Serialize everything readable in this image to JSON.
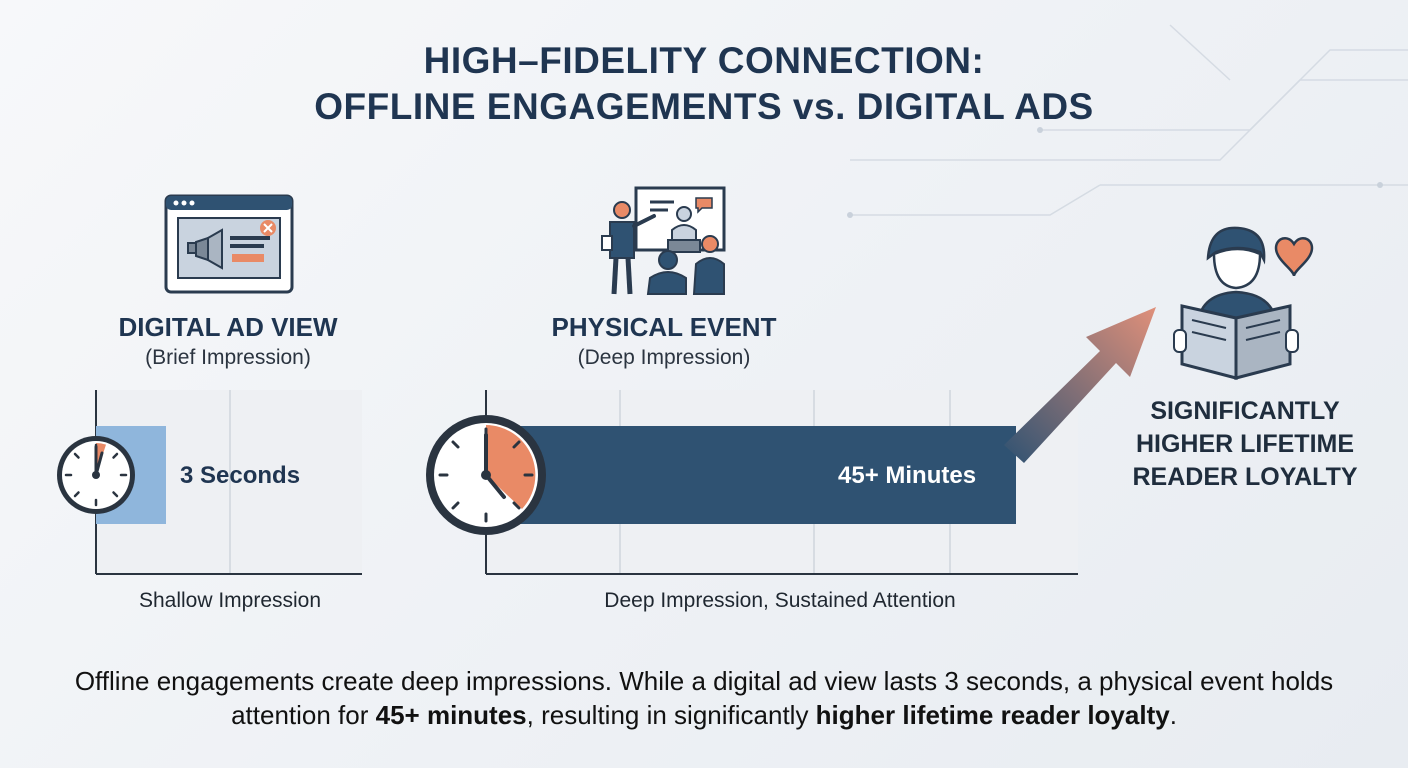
{
  "title": {
    "line1": "HIGH–FIDELITY CONNECTION:",
    "line2": "OFFLINE ENGAGEMENTS vs. DIGITAL ADS"
  },
  "digital": {
    "icon": "browser-ad-icon",
    "heading": "DIGITAL AD VIEW",
    "subheading": "(Brief Impression)",
    "bar_label": "3 Seconds",
    "caption": "Shallow Impression",
    "duration_seconds": 3,
    "bar_color": "#8fb6dc"
  },
  "physical": {
    "icon": "presentation-event-icon",
    "heading": "PHYSICAL EVENT",
    "subheading": "(Deep Impression)",
    "bar_label": "45+ Minutes",
    "caption": "Deep Impression, Sustained Attention",
    "duration_minutes": 45,
    "bar_color": "#2f5272"
  },
  "outcome": {
    "icon": "reader-with-heart-icon",
    "line1": "SIGNIFICANTLY",
    "line2": "HIGHER LIFETIME",
    "line3": "READER LOYALTY"
  },
  "summary": {
    "part1": "Offline engagements create deep impressions. While a digital ad view lasts 3 seconds, a physical event holds attention for ",
    "bold1": "45+ minutes",
    "part2": ", resulting in significantly ",
    "bold2": "higher lifetime reader loyalty",
    "part3": "."
  },
  "colors": {
    "navy": "#1f3551",
    "accent_orange": "#e98a66",
    "light_blue": "#8fb6dc",
    "dark_blue": "#2f5272"
  }
}
